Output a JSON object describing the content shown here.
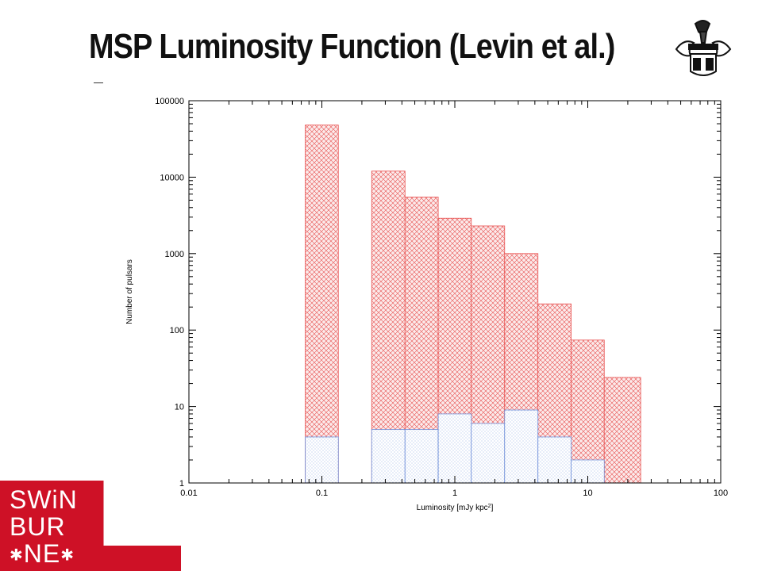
{
  "slide": {
    "title": "MSP Luminosity Function (Levin et al.)"
  },
  "logo": {
    "line1": "SWiN",
    "line2": "BUR",
    "line3": "NE",
    "star": "✱",
    "brand_color": "#ce1126"
  },
  "crest": {
    "icon": "university-crest-icon"
  },
  "chart_data": {
    "type": "bar",
    "histogram": true,
    "xlabel": "Luminosity [mJy kpc",
    "xlabel_sup": "2",
    "xlabel_close": "]",
    "ylabel": "Number of pulsars",
    "x_scale": "log",
    "y_scale": "log",
    "xlim": [
      0.01,
      100
    ],
    "ylim": [
      1,
      100000
    ],
    "x_ticks": [
      0.01,
      0.1,
      1,
      10,
      100
    ],
    "x_tick_labels": [
      "0.01",
      "0.1",
      "1",
      "10",
      "100"
    ],
    "y_ticks": [
      1,
      10,
      100,
      1000,
      10000,
      100000
    ],
    "y_tick_labels": [
      "1",
      "10",
      "100",
      "1000",
      "10000",
      "100000"
    ],
    "grid": false,
    "series": [
      {
        "fill": "red cross-hatch",
        "color": "#e8504f",
        "bins": [
          {
            "x0": 0.075,
            "x1": 0.133,
            "value": 48000
          },
          {
            "x0": 0.237,
            "x1": 0.422,
            "value": 12000
          },
          {
            "x0": 0.422,
            "x1": 0.75,
            "value": 5500
          },
          {
            "x0": 0.75,
            "x1": 1.33,
            "value": 2900
          },
          {
            "x0": 1.33,
            "x1": 2.37,
            "value": 2300
          },
          {
            "x0": 2.37,
            "x1": 4.22,
            "value": 1000
          },
          {
            "x0": 4.22,
            "x1": 7.5,
            "value": 220
          },
          {
            "x0": 7.5,
            "x1": 13.3,
            "value": 74
          },
          {
            "x0": 13.3,
            "x1": 25.0,
            "value": 24
          }
        ]
      },
      {
        "fill": "blue dotted hatch",
        "color": "#6f8fd9",
        "bins": [
          {
            "x0": 0.075,
            "x1": 0.133,
            "value": 4
          },
          {
            "x0": 0.237,
            "x1": 0.422,
            "value": 5
          },
          {
            "x0": 0.422,
            "x1": 0.75,
            "value": 5
          },
          {
            "x0": 0.75,
            "x1": 1.33,
            "value": 8
          },
          {
            "x0": 1.33,
            "x1": 2.37,
            "value": 6
          },
          {
            "x0": 2.37,
            "x1": 4.22,
            "value": 9
          },
          {
            "x0": 4.22,
            "x1": 7.5,
            "value": 4
          },
          {
            "x0": 7.5,
            "x1": 13.3,
            "value": 2
          },
          {
            "x0": 13.3,
            "x1": 25.0,
            "value": 1
          }
        ]
      }
    ]
  }
}
